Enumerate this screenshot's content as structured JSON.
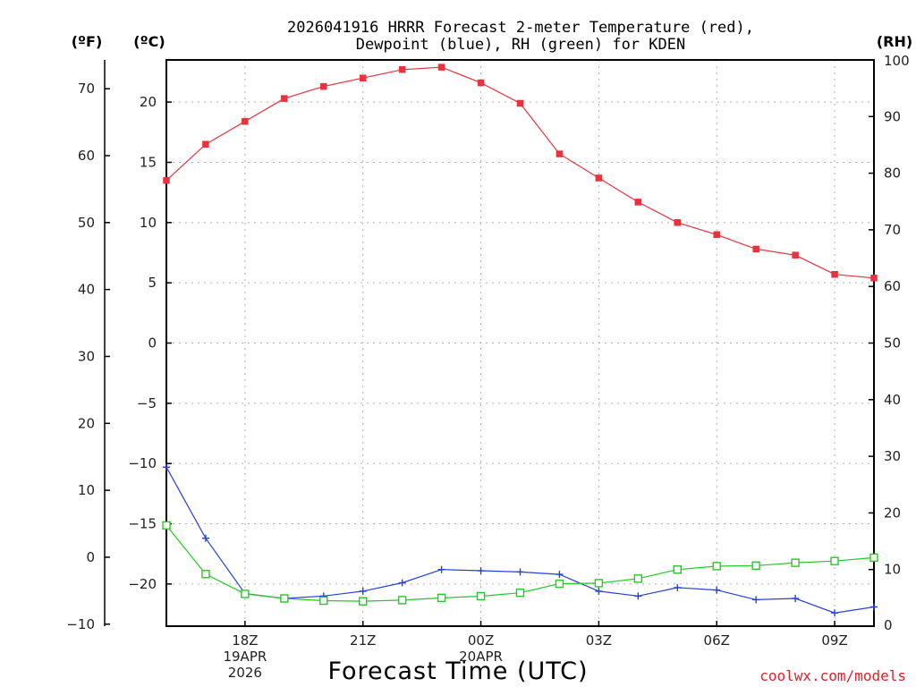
{
  "chart_data": {
    "type": "line",
    "title_line1": "2026041916 HRRR Forecast 2-meter Temperature (red),",
    "title_line2": "Dewpoint (blue), RH (green) for KDEN",
    "xlabel": "Forecast Time (UTC)",
    "credit": "coolwx.com/models",
    "units": {
      "fahrenheit": "(ºF)",
      "celsius": "(ºC)",
      "rh": "(RH)"
    },
    "x_hours": [
      16,
      17,
      18,
      19,
      20,
      21,
      22,
      23,
      24,
      25,
      26,
      27,
      28,
      29,
      30,
      31,
      32,
      33,
      34
    ],
    "x_ticks": [
      {
        "hour": 18,
        "lines": [
          "18Z",
          "19APR",
          "2026"
        ]
      },
      {
        "hour": 21,
        "lines": [
          "21Z"
        ]
      },
      {
        "hour": 24,
        "lines": [
          "00Z",
          "20APR"
        ]
      },
      {
        "hour": 27,
        "lines": [
          "03Z"
        ]
      },
      {
        "hour": 30,
        "lines": [
          "06Z"
        ]
      },
      {
        "hour": 33,
        "lines": [
          "09Z"
        ]
      }
    ],
    "celsius_axis": {
      "min": -23.5,
      "max": 23.5,
      "ticks": [
        -20,
        -15,
        -10,
        -5,
        0,
        5,
        10,
        15,
        20
      ],
      "tick_labels": [
        "−20",
        "−15",
        "−10",
        "−5",
        "0",
        "5",
        "10",
        "15",
        "20"
      ]
    },
    "fahrenheit_axis": {
      "ticks": [
        -10,
        0,
        10,
        20,
        30,
        40,
        50,
        60,
        70
      ],
      "tick_labels": [
        "−10",
        "0",
        "10",
        "20",
        "30",
        "40",
        "50",
        "60",
        "70"
      ]
    },
    "rh_axis": {
      "min": 0,
      "max": 100,
      "ticks": [
        0,
        10,
        20,
        30,
        40,
        50,
        60,
        70,
        80,
        90,
        100
      ],
      "tick_labels": [
        "0",
        "10",
        "20",
        "30",
        "40",
        "50",
        "60",
        "70",
        "80",
        "90",
        "100"
      ]
    },
    "series": [
      {
        "name": "Temperature",
        "unit": "C",
        "axis": "celsius",
        "color": "#e8323c",
        "marker": "filled-square",
        "values": [
          13.5,
          16.5,
          18.4,
          20.3,
          21.3,
          22.0,
          22.7,
          22.9,
          21.6,
          19.9,
          15.7,
          13.7,
          11.7,
          10.0,
          9.0,
          7.8,
          7.3,
          5.7,
          5.4
        ]
      },
      {
        "name": "Dewpoint",
        "unit": "C",
        "axis": "celsius",
        "color": "#2340e0",
        "marker": "plus",
        "values": [
          -10.3,
          -16.2,
          -20.8,
          -21.2,
          -21.0,
          -20.6,
          -19.9,
          -18.8,
          -18.9,
          -19.0,
          -19.2,
          -20.6,
          -21.0,
          -20.3,
          -20.5,
          -21.3,
          -21.2,
          -22.4,
          -21.9
        ]
      },
      {
        "name": "RH",
        "unit": "%",
        "axis": "rh",
        "color": "#22cc22",
        "marker": "open-square",
        "values": [
          17.8,
          9.2,
          5.7,
          4.9,
          4.5,
          4.4,
          4.6,
          5.0,
          5.3,
          5.9,
          7.5,
          7.6,
          8.4,
          10.0,
          10.6,
          10.7,
          11.2,
          11.5,
          12.1
        ]
      }
    ]
  }
}
